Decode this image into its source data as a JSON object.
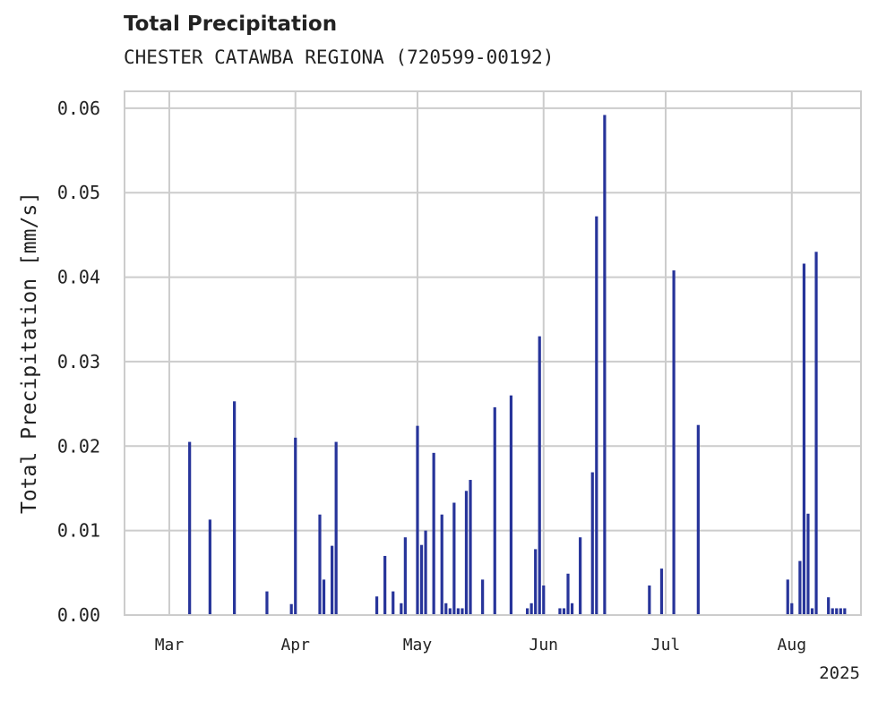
{
  "chart_data": {
    "type": "bar",
    "title": "Total Precipitation",
    "subtitle": "CHESTER CATAWBA REGIONA (720599-00192)",
    "xlabel": "",
    "ylabel": "Total Precipitation [mm/s]",
    "year_label": "2025",
    "x_tick_labels": [
      "Mar",
      "Apr",
      "May",
      "Jun",
      "Jul",
      "Aug"
    ],
    "x_tick_dates": [
      "2025-03-01",
      "2025-04-01",
      "2025-05-01",
      "2025-06-01",
      "2025-07-01",
      "2025-08-01"
    ],
    "xlim": [
      "2025-02-18",
      "2025-08-18"
    ],
    "y_ticks": [
      0.0,
      0.01,
      0.02,
      0.03,
      0.04,
      0.05,
      0.06
    ],
    "y_tick_labels": [
      "0.00",
      "0.01",
      "0.02",
      "0.03",
      "0.04",
      "0.05",
      "0.06"
    ],
    "ylim": [
      0,
      0.062
    ],
    "grid": true,
    "color": "#27349a",
    "series": [
      {
        "x": [
          "2025-03-06",
          "2025-03-11",
          "2025-03-17",
          "2025-03-25",
          "2025-03-31",
          "2025-04-01",
          "2025-04-07",
          "2025-04-08",
          "2025-04-10",
          "2025-04-11",
          "2025-04-21",
          "2025-04-23",
          "2025-04-25",
          "2025-04-27",
          "2025-04-28",
          "2025-05-01",
          "2025-05-02",
          "2025-05-03",
          "2025-05-05",
          "2025-05-07",
          "2025-05-08",
          "2025-05-09",
          "2025-05-10",
          "2025-05-11",
          "2025-05-12",
          "2025-05-13",
          "2025-05-14",
          "2025-05-17",
          "2025-05-20",
          "2025-05-24",
          "2025-05-28",
          "2025-05-29",
          "2025-05-30",
          "2025-05-31",
          "2025-06-01",
          "2025-06-05",
          "2025-06-06",
          "2025-06-07",
          "2025-06-08",
          "2025-06-10",
          "2025-06-13",
          "2025-06-14",
          "2025-06-16",
          "2025-06-27",
          "2025-06-30",
          "2025-07-03",
          "2025-07-09",
          "2025-07-31",
          "2025-08-01",
          "2025-08-03",
          "2025-08-04",
          "2025-08-05",
          "2025-08-06",
          "2025-08-07",
          "2025-08-10",
          "2025-08-11",
          "2025-08-12",
          "2025-08-13",
          "2025-08-14"
        ],
        "values": [
          0.0205,
          0.0113,
          0.0253,
          0.0028,
          0.0013,
          0.021,
          0.0119,
          0.0042,
          0.0082,
          0.0205,
          0.0022,
          0.007,
          0.0028,
          0.0014,
          0.0092,
          0.0224,
          0.0083,
          0.01,
          0.0192,
          0.0119,
          0.0014,
          0.0008,
          0.0133,
          0.0008,
          0.0008,
          0.0147,
          0.016,
          0.0042,
          0.0246,
          0.026,
          0.0008,
          0.0014,
          0.0078,
          0.033,
          0.0035,
          0.0008,
          0.0008,
          0.0049,
          0.0014,
          0.0092,
          0.0169,
          0.0472,
          0.0592,
          0.0035,
          0.0055,
          0.0408,
          0.0225,
          0.0042,
          0.0014,
          0.0064,
          0.0416,
          0.012,
          0.0008,
          0.043,
          0.0021,
          0.0008,
          0.0008,
          0.0008,
          0.0008
        ]
      }
    ]
  }
}
